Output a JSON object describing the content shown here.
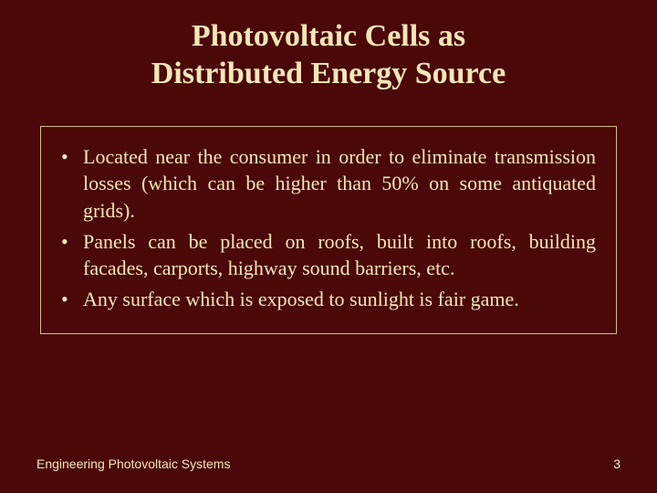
{
  "slide": {
    "title_line1": "Photovoltaic Cells as",
    "title_line2": "Distributed Energy Source",
    "bullets": [
      "Located near the consumer in order to eliminate transmission losses (which can be higher than 50% on some antiquated grids).",
      "Panels can be placed on roofs, built into roofs, building facades, carports, highway sound barriers, etc.",
      "Any surface which is exposed to sunlight is fair game."
    ],
    "footer_left": "Engineering Photovoltaic Systems",
    "page_number": "3"
  },
  "styling": {
    "background_color": "#4a0808",
    "text_color": "#f5e6b8",
    "border_color": "#d4c088",
    "title_fontsize": 34,
    "body_fontsize": 22,
    "footer_fontsize": 14,
    "font_family_title": "Georgia, serif",
    "font_family_body": "Georgia, serif",
    "font_family_footer": "Arial, sans-serif"
  }
}
